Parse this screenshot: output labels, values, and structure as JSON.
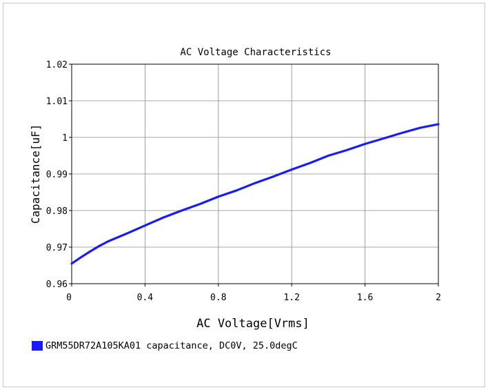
{
  "chart_data": {
    "type": "line",
    "title": "AC Voltage Characteristics",
    "xlabel": "AC Voltage[Vrms]",
    "ylabel": "Capacitance[uF]",
    "xlim": [
      0,
      2
    ],
    "ylim": [
      0.96,
      1.02
    ],
    "xticks": [
      "0",
      "0.4",
      "0.8",
      "1.2",
      "1.6",
      "2"
    ],
    "yticks": [
      "0.96",
      "0.97",
      "0.98",
      "0.99",
      "1",
      "1.01",
      "1.02"
    ],
    "grid": true,
    "legend_position": "bottom-left",
    "series": [
      {
        "name": "GRM55DR72A105KA01 capacitance, DC0V, 25.0degC",
        "color": "#1a1aff",
        "x": [
          0,
          0.05,
          0.1,
          0.15,
          0.2,
          0.3,
          0.4,
          0.5,
          0.6,
          0.7,
          0.8,
          0.9,
          1.0,
          1.1,
          1.2,
          1.3,
          1.4,
          1.5,
          1.6,
          1.7,
          1.8,
          1.9,
          2.0
        ],
        "y": [
          0.9655,
          0.9672,
          0.9688,
          0.9703,
          0.9716,
          0.9737,
          0.9759,
          0.9781,
          0.98,
          0.9818,
          0.9838,
          0.9855,
          0.9875,
          0.9893,
          0.9912,
          0.993,
          0.995,
          0.9965,
          0.9982,
          0.9997,
          1.0012,
          1.0026,
          1.0036
        ]
      }
    ]
  }
}
